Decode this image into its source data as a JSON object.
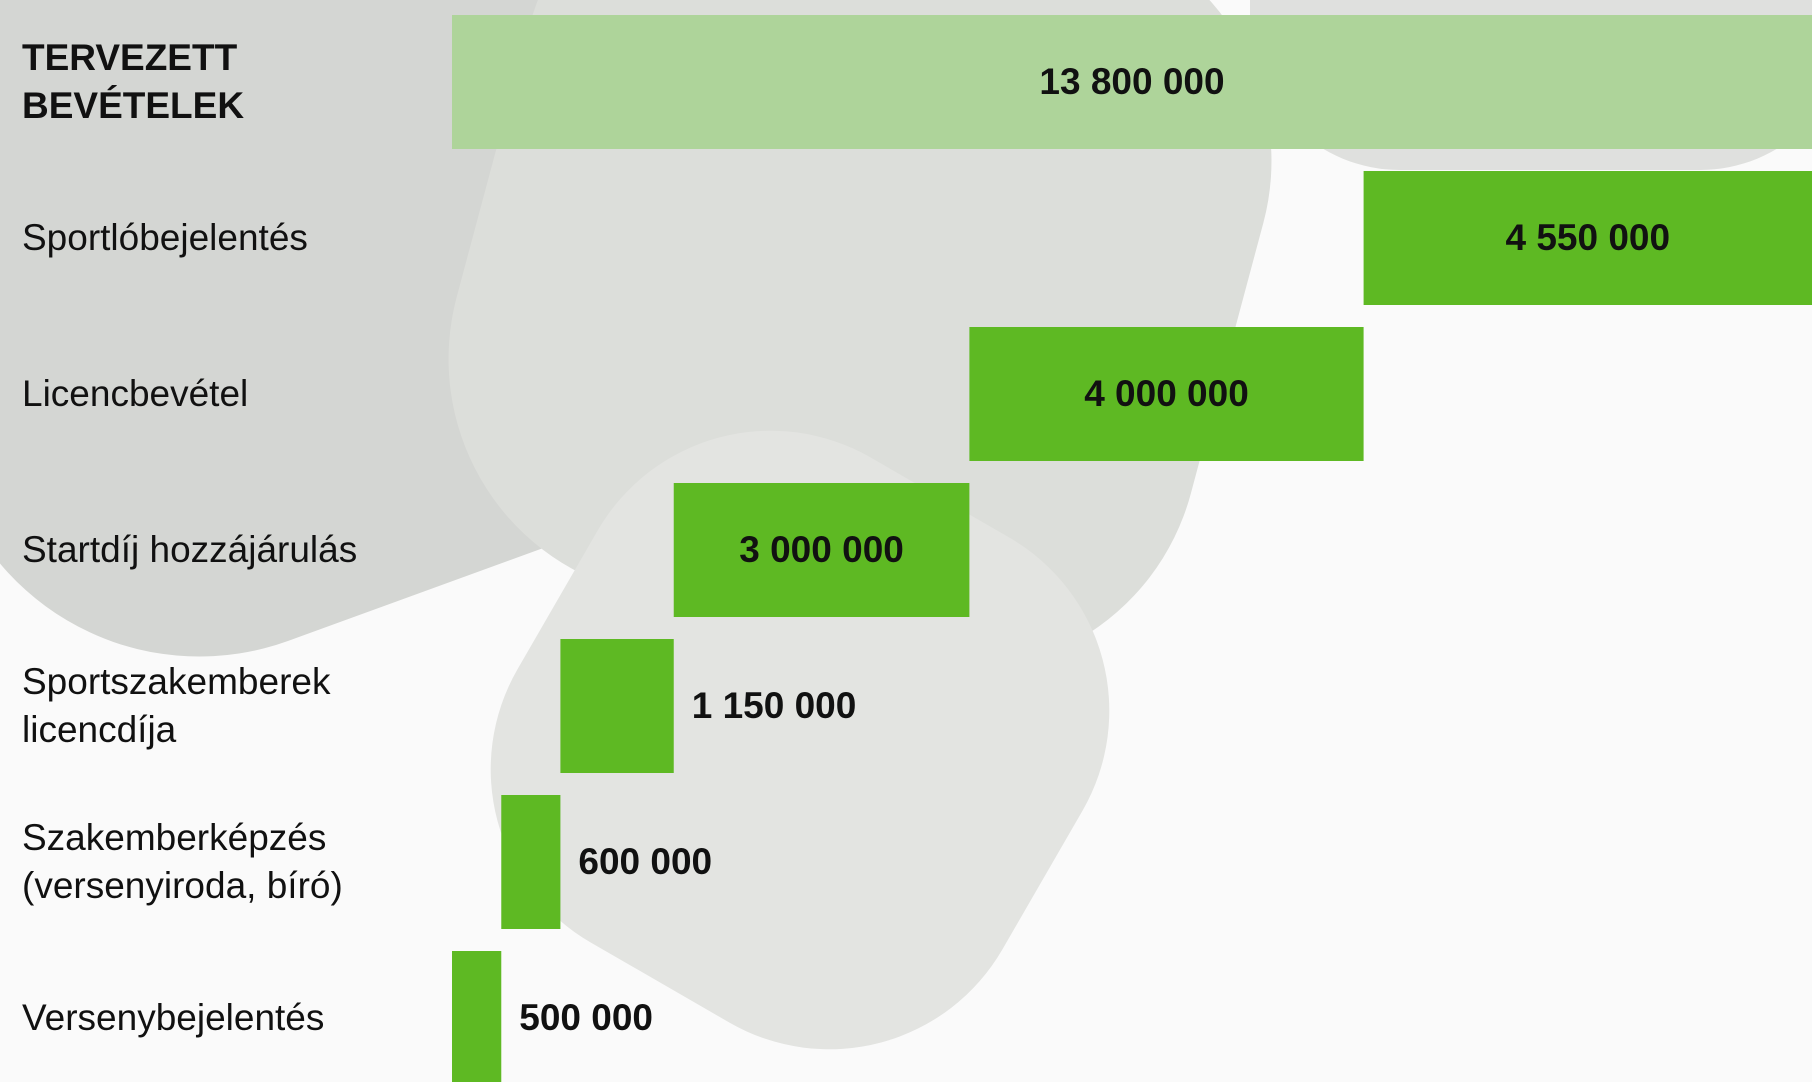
{
  "chart_data": {
    "type": "waterfall",
    "total": {
      "name": "TERVEZETT BEVÉTELEK",
      "value": 13800000,
      "value_label": "13 800 000",
      "color": "#aed49a"
    },
    "categories": [
      "Sportlóbejelentés",
      "Licencbevétel",
      "Startdíj hozzájárulás",
      "Sportszakemberek licencdíja",
      "Szakemberképzés (versenyiroda, bíró)",
      "Versenybejelentés"
    ],
    "values": [
      4550000,
      4000000,
      3000000,
      1150000,
      600000,
      500000
    ],
    "value_labels": [
      "4 550 000",
      "4 000 000",
      "3 000 000",
      "1 150 000",
      "600 000",
      "500 000"
    ],
    "color": "#5eb923"
  }
}
